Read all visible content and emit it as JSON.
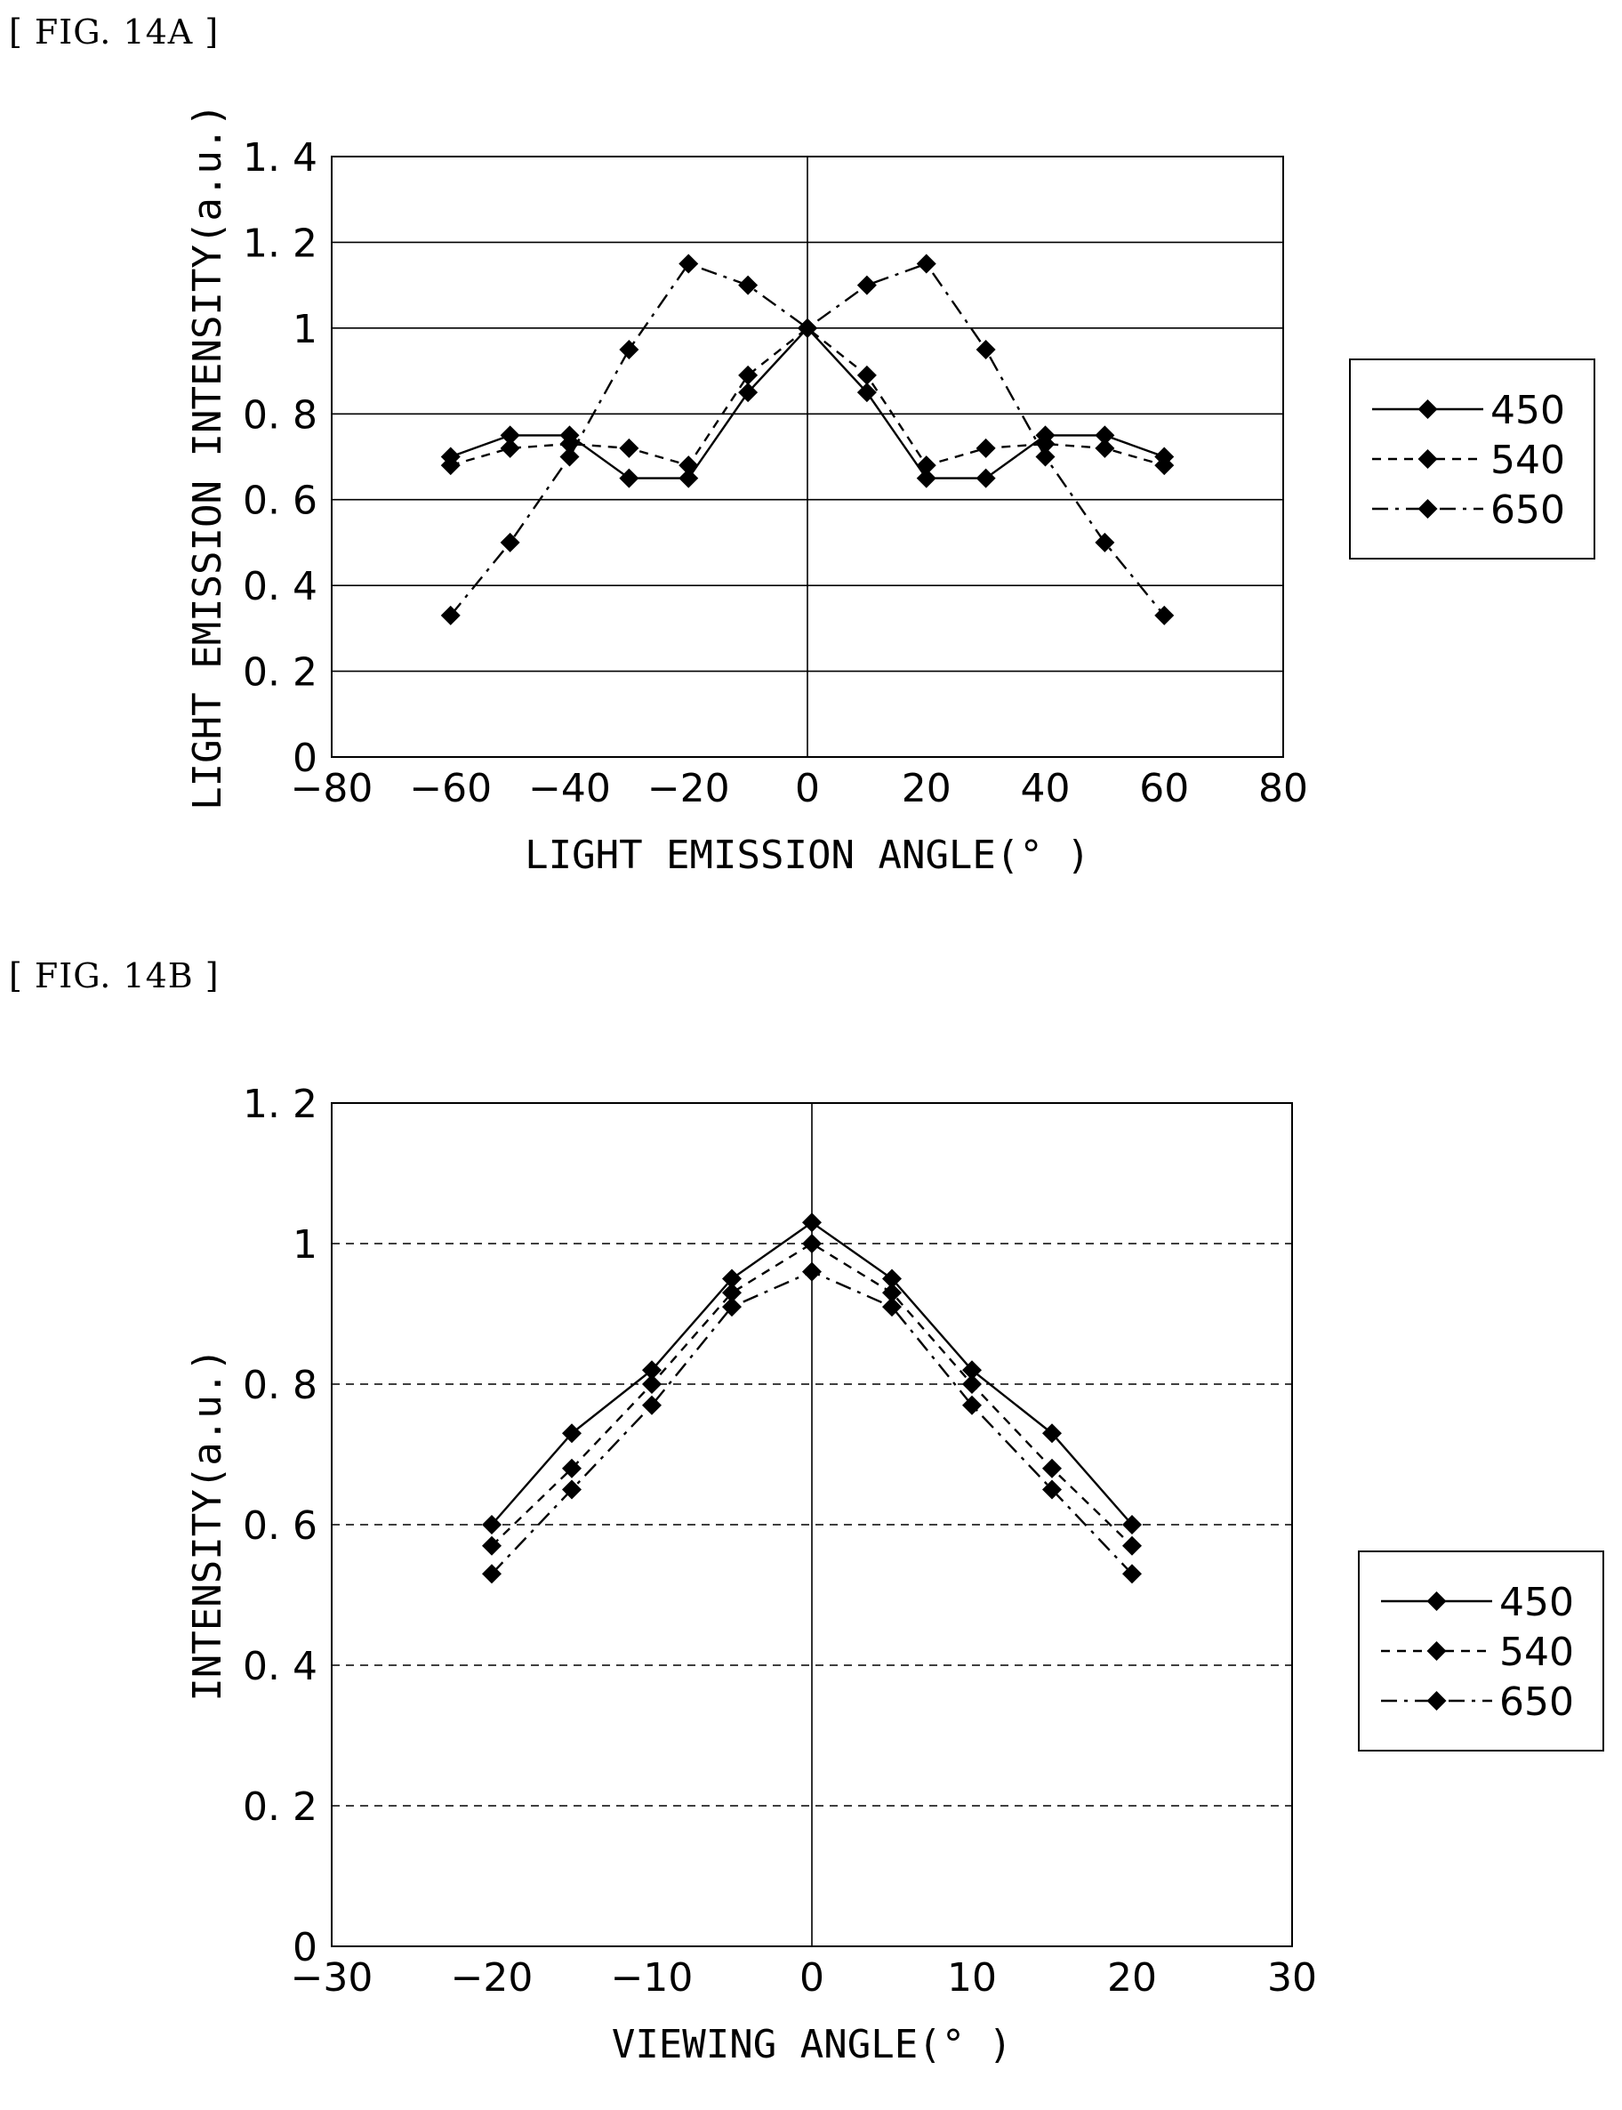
{
  "figures": {
    "a": {
      "label": "[ FIG. 14A ]"
    },
    "b": {
      "label": "[ FIG. 14B ]"
    }
  },
  "colors": {
    "line": "#000000",
    "grid": "#000000",
    "background": "#ffffff"
  },
  "chart_data": [
    {
      "type": "line",
      "title": "",
      "xlabel": "LIGHT EMISSION ANGLE(° )",
      "ylabel": "LIGHT EMISSION INTENSITY(a.u.)",
      "xlim": [
        -80,
        80
      ],
      "ylim": [
        0,
        1.4
      ],
      "xticks": [
        -80,
        -60,
        -40,
        -20,
        0,
        20,
        40,
        60,
        80
      ],
      "xtick_labels": [
        "−80",
        "−60",
        "−40",
        "−20",
        "0",
        "20",
        "40",
        "60",
        "80"
      ],
      "yticks": [
        0,
        0.2,
        0.4,
        0.6,
        0.8,
        1,
        1.2,
        1.4
      ],
      "ytick_labels": [
        "0",
        "0. 2",
        "0. 4",
        "0. 6",
        "0. 8",
        "1",
        "1. 2",
        "1. 4"
      ],
      "grid": "horizontal-solid",
      "legend": "right",
      "marker": "diamond",
      "x": [
        -60,
        -50,
        -40,
        -30,
        -20,
        -10,
        0,
        10,
        20,
        30,
        40,
        50,
        60
      ],
      "series": [
        {
          "name": "450",
          "style": "solid",
          "values": [
            0.7,
            0.75,
            0.75,
            0.65,
            0.65,
            0.85,
            1.0,
            0.85,
            0.65,
            0.65,
            0.75,
            0.75,
            0.7
          ]
        },
        {
          "name": "540",
          "style": "dashed",
          "values": [
            0.68,
            0.72,
            0.73,
            0.72,
            0.68,
            0.89,
            1.0,
            0.89,
            0.68,
            0.72,
            0.73,
            0.72,
            0.68
          ]
        },
        {
          "name": "650",
          "style": "dashdot",
          "values": [
            0.33,
            0.5,
            0.7,
            0.95,
            1.15,
            1.1,
            1.0,
            1.1,
            1.15,
            0.95,
            0.7,
            0.5,
            0.33
          ]
        }
      ]
    },
    {
      "type": "line",
      "title": "",
      "xlabel": "VIEWING ANGLE(° )",
      "ylabel": "INTENSITY(a.u.)",
      "xlim": [
        -30,
        30
      ],
      "ylim": [
        0,
        1.2
      ],
      "xticks": [
        -30,
        -20,
        -10,
        0,
        10,
        20,
        30
      ],
      "xtick_labels": [
        "−30",
        "−20",
        "−10",
        "0",
        "10",
        "20",
        "30"
      ],
      "yticks": [
        0,
        0.2,
        0.4,
        0.6,
        0.8,
        1,
        1.2
      ],
      "ytick_labels": [
        "0",
        "0. 2",
        "0. 4",
        "0. 6",
        "0. 8",
        "1",
        "1. 2"
      ],
      "grid": "horizontal-dashed",
      "legend": "right",
      "marker": "diamond",
      "x": [
        -20,
        -15,
        -10,
        -5,
        0,
        5,
        10,
        15,
        20
      ],
      "series": [
        {
          "name": "450",
          "style": "solid",
          "values": [
            0.6,
            0.73,
            0.82,
            0.95,
            1.03,
            0.95,
            0.82,
            0.73,
            0.6
          ]
        },
        {
          "name": "540",
          "style": "dashed",
          "values": [
            0.57,
            0.68,
            0.8,
            0.93,
            1.0,
            0.93,
            0.8,
            0.68,
            0.57
          ]
        },
        {
          "name": "650",
          "style": "dashdot",
          "values": [
            0.53,
            0.65,
            0.77,
            0.91,
            0.96,
            0.91,
            0.77,
            0.65,
            0.53
          ]
        }
      ]
    }
  ]
}
